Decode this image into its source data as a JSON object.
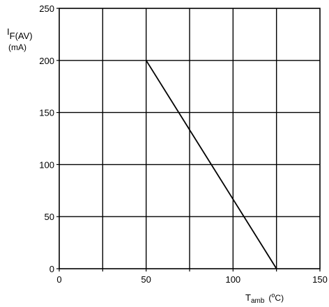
{
  "chart_data": {
    "type": "line",
    "ylabel": {
      "main": "I",
      "subscript": "F(AV)",
      "unit": "(mA)"
    },
    "xlabel": {
      "main": "T",
      "subscript": "amb",
      "unit_open": "(",
      "unit_sup": "o",
      "unit_rest": "C)"
    },
    "xlim": [
      0,
      150
    ],
    "ylim": [
      0,
      250
    ],
    "xticks": [
      0,
      25,
      50,
      75,
      100,
      125,
      150
    ],
    "yticks": [
      0,
      50,
      100,
      150,
      200,
      250
    ],
    "xtick_labels": [
      "0",
      "50",
      "100",
      "150"
    ],
    "ytick_labels": [
      "0",
      "50",
      "100",
      "150",
      "200",
      "250"
    ],
    "grid": true,
    "series": [
      {
        "x": [
          50,
          125
        ],
        "y": [
          200,
          0
        ]
      }
    ],
    "colors": {
      "line": "#000000",
      "grid": "#000000",
      "background": "#ffffff"
    }
  }
}
